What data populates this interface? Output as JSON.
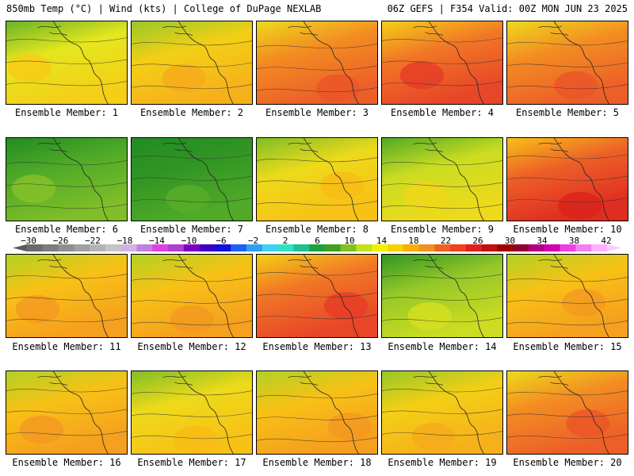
{
  "header": {
    "left": "850mb Temp (°C) | Wind (kts) | College of DuPage NEXLAB",
    "right": "06Z GEFS | F354 Valid: 00Z MON JUN 23 2025"
  },
  "panels": [
    {
      "label": "Ensemble Member: 1",
      "warmth": 0.45
    },
    {
      "label": "Ensemble Member: 2",
      "warmth": 0.55
    },
    {
      "label": "Ensemble Member: 3",
      "warmth": 0.75
    },
    {
      "label": "Ensemble Member: 4",
      "warmth": 0.8
    },
    {
      "label": "Ensemble Member: 5",
      "warmth": 0.75
    },
    {
      "label": "Ensemble Member: 6",
      "warmth": 0.15
    },
    {
      "label": "Ensemble Member: 7",
      "warmth": 0.05
    },
    {
      "label": "Ensemble Member: 8",
      "warmth": 0.5
    },
    {
      "label": "Ensemble Member: 9",
      "warmth": 0.4
    },
    {
      "label": "Ensemble Member: 10",
      "warmth": 0.85
    },
    {
      "label": "Ensemble Member: 11",
      "warmth": 0.6
    },
    {
      "label": "Ensemble Member: 12",
      "warmth": 0.6
    },
    {
      "label": "Ensemble Member: 13",
      "warmth": 0.8
    },
    {
      "label": "Ensemble Member: 14",
      "warmth": 0.3
    },
    {
      "label": "Ensemble Member: 15",
      "warmth": 0.6
    },
    {
      "label": "Ensemble Member: 16",
      "warmth": 0.6
    },
    {
      "label": "Ensemble Member: 17",
      "warmth": 0.5
    },
    {
      "label": "Ensemble Member: 18",
      "warmth": 0.6
    },
    {
      "label": "Ensemble Member: 19",
      "warmth": 0.55
    },
    {
      "label": "Ensemble Member: 20",
      "warmth": 0.75
    }
  ],
  "colorbar": {
    "labels": [
      "−30",
      "−26",
      "−22",
      "−18",
      "−14",
      "−10",
      "−6",
      "−2",
      "2",
      "6",
      "10",
      "14",
      "18",
      "22",
      "26",
      "30",
      "34",
      "38",
      "42"
    ],
    "colors": [
      "#6b6b6b",
      "#7d7d7d",
      "#8f8f8f",
      "#a1a1a1",
      "#b3b3b3",
      "#c5c5c5",
      "#d1b3e0",
      "#c080e0",
      "#e040e0",
      "#b040d0",
      "#8000c0",
      "#4000c0",
      "#1010e0",
      "#2060f0",
      "#30a0f0",
      "#40d0f0",
      "#30e0c0",
      "#20c090",
      "#20a040",
      "#40a020",
      "#80c020",
      "#c0e020",
      "#f0f000",
      "#f8d000",
      "#f8b000",
      "#f09020",
      "#f06020",
      "#f04020",
      "#e02020",
      "#c01010",
      "#a00000",
      "#900030",
      "#b00080",
      "#d000b0",
      "#f040e0",
      "#f080f0",
      "#ffb0ff"
    ]
  }
}
